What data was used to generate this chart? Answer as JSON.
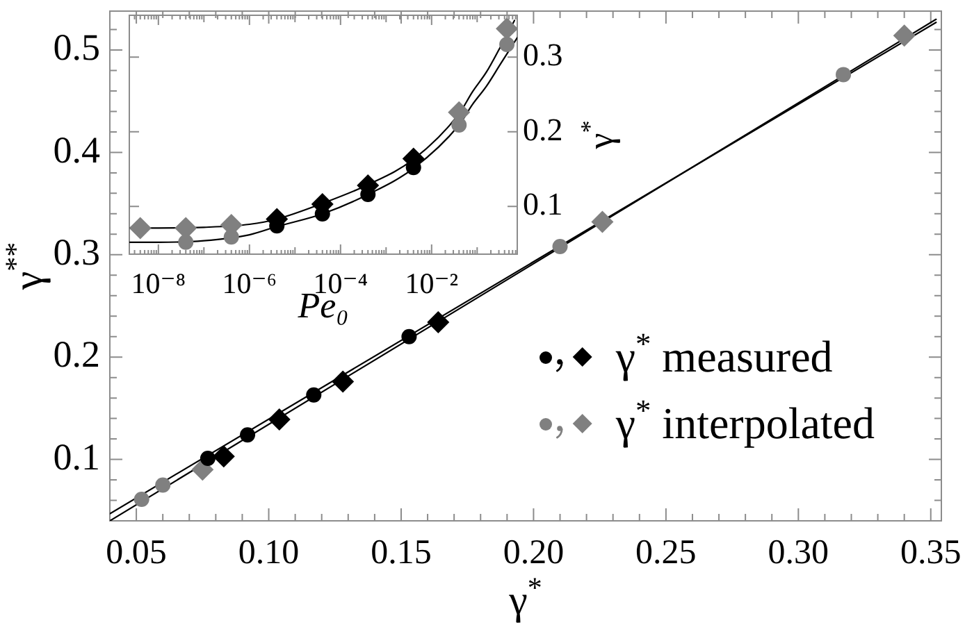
{
  "chart_data": [
    {
      "type": "scatter",
      "xlabel": "γ$^{*}$",
      "ylabel": "γ$^{**}$",
      "xlim": [
        0.04,
        0.354
      ],
      "ylim": [
        0.04,
        0.538
      ],
      "xticks": [
        0.05,
        {
          "value": 0.06,
          "label": null
        },
        {
          "value": 0.07,
          "label": null
        },
        {
          "value": 0.08,
          "label": null
        },
        {
          "value": 0.09,
          "label": null
        },
        {
          "value": 0.1,
          "label": "0.10"
        },
        {
          "value": 0.11,
          "label": null
        },
        {
          "value": 0.12,
          "label": null
        },
        {
          "value": 0.13,
          "label": null
        },
        {
          "value": 0.14,
          "label": null
        },
        0.15,
        {
          "value": 0.16,
          "label": null
        },
        {
          "value": 0.17,
          "label": null
        },
        {
          "value": 0.18,
          "label": null
        },
        {
          "value": 0.19,
          "label": null
        },
        {
          "value": 0.2,
          "label": "0.20"
        },
        {
          "value": 0.21,
          "label": null
        },
        {
          "value": 0.22,
          "label": null
        },
        {
          "value": 0.23,
          "label": null
        },
        {
          "value": 0.24,
          "label": null
        },
        0.25,
        {
          "value": 0.26,
          "label": null
        },
        {
          "value": 0.27,
          "label": null
        },
        {
          "value": 0.28,
          "label": null
        },
        {
          "value": 0.29,
          "label": null
        },
        {
          "value": 0.3,
          "label": "0.30"
        },
        {
          "value": 0.31,
          "label": null
        },
        {
          "value": 0.32,
          "label": null
        },
        {
          "value": 0.33,
          "label": null
        },
        {
          "value": 0.34,
          "label": null
        },
        0.35
      ],
      "yticks": [
        {
          "value": 0.06,
          "label": null
        },
        {
          "value": 0.08,
          "label": null
        },
        0.1,
        {
          "value": 0.12,
          "label": null
        },
        {
          "value": 0.14,
          "label": null
        },
        {
          "value": 0.16,
          "label": null
        },
        {
          "value": 0.18,
          "label": null
        },
        0.2,
        {
          "value": 0.22,
          "label": null
        },
        {
          "value": 0.24,
          "label": null
        },
        {
          "value": 0.26,
          "label": null
        },
        {
          "value": 0.28,
          "label": null
        },
        0.3,
        {
          "value": 0.32,
          "label": null
        },
        {
          "value": 0.34,
          "label": null
        },
        {
          "value": 0.36,
          "label": null
        },
        {
          "value": 0.38,
          "label": null
        },
        0.4,
        {
          "value": 0.42,
          "label": null
        },
        {
          "value": 0.44,
          "label": null
        },
        {
          "value": 0.46,
          "label": null
        },
        {
          "value": 0.48,
          "label": null
        },
        0.5,
        {
          "value": 0.52,
          "label": null
        }
      ],
      "legend": "bottom right",
      "series": [
        {
          "type": "line",
          "color": "#000000",
          "marker": "none",
          "x": [
            0.04,
            0.352
          ],
          "values": [
            0.047,
            0.527
          ]
        },
        {
          "type": "line",
          "color": "#000000",
          "marker": "none",
          "x": [
            0.04,
            0.352
          ],
          "values": [
            0.04,
            0.53
          ]
        },
        {
          "name": "γ$^{*}$ measured",
          "color": "#000000",
          "marker": "circle",
          "x": [
            0.077,
            0.092,
            0.117,
            0.153
          ],
          "values": [
            0.101,
            0.124,
            0.163,
            0.22
          ]
        },
        {
          "color": "#000000",
          "marker": "diamond",
          "x": [
            0.083,
            0.104,
            0.128,
            0.164
          ],
          "values": [
            0.103,
            0.139,
            0.176,
            0.234
          ]
        },
        {
          "name": "γ$^{*}$ interpolated",
          "color": "#808080",
          "marker": "circle",
          "x": [
            0.052,
            0.06,
            0.21,
            0.317
          ],
          "values": [
            0.061,
            0.075,
            0.308,
            0.476
          ]
        },
        {
          "color": "#808080",
          "marker": "diamond",
          "x": [
            0.075,
            0.226,
            0.34
          ],
          "values": [
            0.09,
            0.332,
            0.514
          ]
        }
      ]
    },
    {
      "type": "scatter",
      "xlabel": "Pe₀",
      "y2label": "γ$^{*}$",
      "log": "x",
      "xlim": [
        2.3e-09,
        0.76
      ],
      "y2lim": [
        0.036,
        0.356
      ],
      "xticks": [
        {
          "value": 3e-09,
          "label": null
        },
        {
          "value": 4e-09,
          "label": null
        },
        {
          "value": 5e-09,
          "label": null
        },
        {
          "value": 6e-09,
          "label": null
        },
        {
          "value": 7e-09,
          "label": null
        },
        {
          "value": 8e-09,
          "label": null
        },
        {
          "value": 9e-09,
          "label": null
        },
        {
          "value": 1e-08,
          "label": "10⁻⁸"
        },
        {
          "value": 2e-08,
          "label": null
        },
        {
          "value": 3e-08,
          "label": null
        },
        {
          "value": 4e-08,
          "label": null
        },
        {
          "value": 5e-08,
          "label": null
        },
        {
          "value": 6e-08,
          "label": null
        },
        {
          "value": 7e-08,
          "label": null
        },
        {
          "value": 8e-08,
          "label": null
        },
        {
          "value": 9e-08,
          "label": null
        },
        {
          "value": 1e-07,
          "label": null
        },
        {
          "value": 2e-07,
          "label": null
        },
        {
          "value": 3e-07,
          "label": null
        },
        {
          "value": 4e-07,
          "label": null
        },
        {
          "value": 5e-07,
          "label": null
        },
        {
          "value": 6e-07,
          "label": null
        },
        {
          "value": 7e-07,
          "label": null
        },
        {
          "value": 8e-07,
          "label": null
        },
        {
          "value": 9e-07,
          "label": null
        },
        {
          "value": 1e-06,
          "label": "10⁻⁶"
        },
        {
          "value": 2e-06,
          "label": null
        },
        {
          "value": 3e-06,
          "label": null
        },
        {
          "value": 4e-06,
          "label": null
        },
        {
          "value": 5e-06,
          "label": null
        },
        {
          "value": 6e-06,
          "label": null
        },
        {
          "value": 7e-06,
          "label": null
        },
        {
          "value": 8e-06,
          "label": null
        },
        {
          "value": 9e-06,
          "label": null
        },
        {
          "value": 1e-05,
          "label": null
        },
        {
          "value": 2e-05,
          "label": null
        },
        {
          "value": 3e-05,
          "label": null
        },
        {
          "value": 4e-05,
          "label": null
        },
        {
          "value": 5e-05,
          "label": null
        },
        {
          "value": 6e-05,
          "label": null
        },
        {
          "value": 7e-05,
          "label": null
        },
        {
          "value": 8e-05,
          "label": null
        },
        {
          "value": 9e-05,
          "label": null
        },
        {
          "value": 0.0001,
          "label": "10⁻⁴"
        },
        {
          "value": 0.0002,
          "label": null
        },
        {
          "value": 0.0003,
          "label": null
        },
        {
          "value": 0.0004,
          "label": null
        },
        {
          "value": 0.0005,
          "label": null
        },
        {
          "value": 0.0006,
          "label": null
        },
        {
          "value": 0.0007,
          "label": null
        },
        {
          "value": 0.0008,
          "label": null
        },
        {
          "value": 0.0009,
          "label": null
        },
        {
          "value": 0.001,
          "label": null
        },
        {
          "value": 0.002,
          "label": null
        },
        {
          "value": 0.003,
          "label": null
        },
        {
          "value": 0.004,
          "label": null
        },
        {
          "value": 0.005,
          "label": null
        },
        {
          "value": 0.006,
          "label": null
        },
        {
          "value": 0.007,
          "label": null
        },
        {
          "value": 0.008,
          "label": null
        },
        {
          "value": 0.009,
          "label": null
        },
        {
          "value": 0.01,
          "label": "10⁻²"
        },
        {
          "value": 0.02,
          "label": null
        },
        {
          "value": 0.03,
          "label": null
        },
        {
          "value": 0.04,
          "label": null
        },
        {
          "value": 0.05,
          "label": null
        },
        {
          "value": 0.06,
          "label": null
        },
        {
          "value": 0.07,
          "label": null
        },
        {
          "value": 0.08,
          "label": null
        },
        {
          "value": 0.09,
          "label": null
        },
        {
          "value": 0.1,
          "label": null
        },
        {
          "value": 0.2,
          "label": null
        },
        {
          "value": 0.3,
          "label": null
        },
        {
          "value": 0.4,
          "label": null
        },
        {
          "value": 0.5,
          "label": null
        },
        {
          "value": 0.6,
          "label": null
        },
        {
          "value": 0.7,
          "label": null
        }
      ],
      "y2ticks": [
        0.1,
        0.2,
        0.3
      ],
      "series": [
        {
          "type": "line",
          "color": "#000000",
          "marker": "none",
          "axis": "y2",
          "x": [
            2.3e-09,
            1e-08,
            1e-07,
            1e-06,
            4e-06,
            4e-05,
            0.0004,
            0.004,
            0.04,
            0.08,
            0.16,
            0.32,
            0.66
          ],
          "values": [
            0.071,
            0.071,
            0.072,
            0.076,
            0.083,
            0.104,
            0.129,
            0.163,
            0.224,
            0.254,
            0.28,
            0.313,
            0.349
          ]
        },
        {
          "type": "line",
          "color": "#000000",
          "marker": "none",
          "axis": "y2",
          "x": [
            2.3e-09,
            1e-08,
            1e-07,
            1e-06,
            4e-06,
            4e-05,
            0.0004,
            0.004,
            0.04,
            0.08,
            0.16,
            0.32,
            0.76
          ],
          "values": [
            0.052,
            0.052,
            0.054,
            0.062,
            0.073,
            0.09,
            0.116,
            0.151,
            0.209,
            0.237,
            0.261,
            0.29,
            0.326
          ]
        },
        {
          "color": "#000000",
          "marker": "circle",
          "axis": "y2",
          "x": [
            4e-06,
            4e-05,
            0.0004,
            0.004
          ],
          "values": [
            0.074,
            0.09,
            0.116,
            0.152
          ]
        },
        {
          "color": "#000000",
          "marker": "diamond",
          "axis": "y2",
          "x": [
            4e-06,
            4e-05,
            0.0004,
            0.004
          ],
          "values": [
            0.083,
            0.103,
            0.128,
            0.164
          ]
        },
        {
          "color": "#808080",
          "marker": "circle",
          "axis": "y2",
          "x": [
            4e-08,
            4e-07,
            0.04,
            0.45
          ],
          "values": [
            0.052,
            0.059,
            0.209,
            0.317
          ]
        },
        {
          "color": "#808080",
          "marker": "diamond",
          "axis": "y2",
          "x": [
            4e-09,
            4e-08,
            4e-07,
            0.04,
            0.45
          ],
          "values": [
            0.071,
            0.071,
            0.075,
            0.226,
            0.338
          ]
        }
      ]
    }
  ]
}
